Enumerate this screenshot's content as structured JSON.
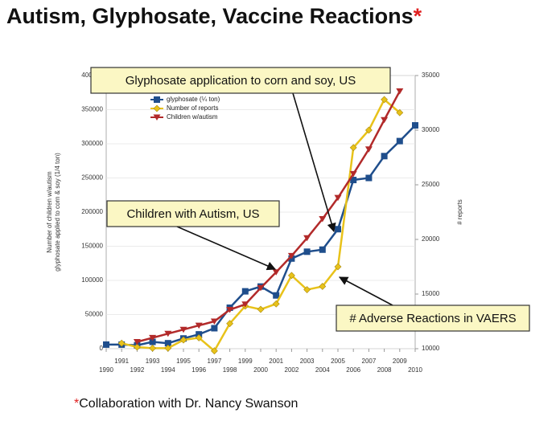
{
  "title": "Autism, Glyphosate, Vaccine Reactions",
  "title_mark": "*",
  "footnote_mark": "*",
  "footnote": "Collaboration with Dr. Nancy Swanson",
  "chart_data": {
    "type": "line",
    "ylabel": [
      "Number of children w/autism",
      "glyphosate applied to corn & soy (1/4 ton)"
    ],
    "y2label": "# reports",
    "x": [
      1990,
      1991,
      1992,
      1993,
      1994,
      1995,
      1996,
      1997,
      1998,
      1999,
      2000,
      2001,
      2002,
      2003,
      2004,
      2005,
      2006,
      2007,
      2008,
      2009,
      2010
    ],
    "xlim": [
      1990,
      2010
    ],
    "xticks": [
      1990,
      1991,
      1992,
      1993,
      1994,
      1995,
      1996,
      1997,
      1998,
      1999,
      2000,
      2001,
      2002,
      2003,
      2004,
      2005,
      2006,
      2007,
      2008,
      2009,
      2010
    ],
    "ylim": [
      0,
      400000
    ],
    "yticks": [
      0,
      50000,
      100000,
      150000,
      200000,
      250000,
      300000,
      350000,
      400000
    ],
    "y2lim": [
      10000,
      35000
    ],
    "y2ticks": [
      10000,
      15000,
      20000,
      25000,
      30000,
      35000
    ],
    "grid": true,
    "legend": "upper left",
    "series": [
      {
        "name": "glyphosate (¼ ton)",
        "color": "#1f4e8c",
        "marker": "square",
        "values": [
          6000,
          6000,
          5000,
          10000,
          8000,
          15000,
          21000,
          30000,
          60000,
          84000,
          91000,
          78000,
          132000,
          142000,
          145000,
          175000,
          247000,
          250000,
          282000,
          304000,
          327000
        ]
      },
      {
        "name": "Number of reports",
        "color": "#e8c21a",
        "marker": "diamond",
        "axis": "y2",
        "values": [
          null,
          10500,
          10150,
          10050,
          10050,
          10800,
          11000,
          9800,
          12300,
          13900,
          13600,
          14100,
          16700,
          15400,
          15700,
          17500,
          28400,
          30000,
          32800,
          31600,
          null
        ]
      },
      {
        "name": "Children w/autism",
        "color": "#b22a2a",
        "marker": "triangle",
        "values": [
          null,
          null,
          10000,
          16000,
          22000,
          28000,
          34000,
          40000,
          57000,
          65000,
          89000,
          112000,
          136000,
          162000,
          190000,
          221000,
          256000,
          292000,
          335000,
          377000,
          null
        ]
      }
    ],
    "annotations": [
      "Glyphosate application to corn and soy, US",
      "Children with Autism, US",
      "# Adverse Reactions in VAERS"
    ]
  }
}
